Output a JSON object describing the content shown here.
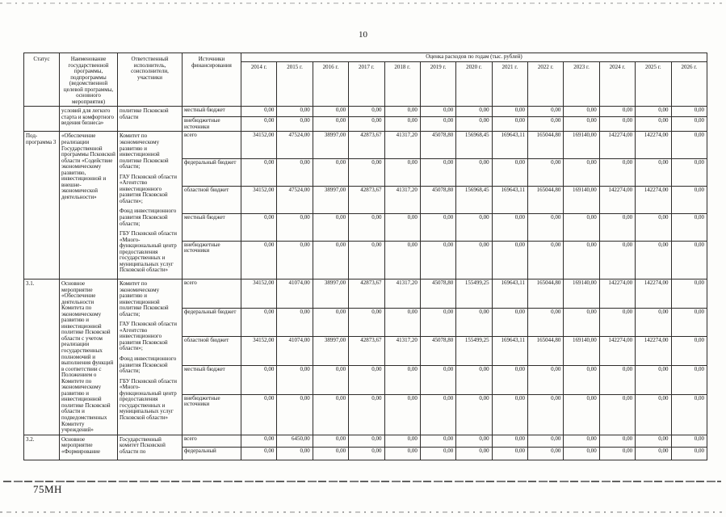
{
  "page": {
    "number": "10",
    "footer_code": "75МН"
  },
  "table": {
    "headers": {
      "status": "Статус",
      "program_name": "Наименование государственной программы, подпрограммы (ведомственной целевой программы, основного мероприятия)",
      "executor": "Ответственный исполнитель, соисполнители, участники",
      "funding_source": "Источники финансирования",
      "costs_banner": "Оценка расходов по годам (тыс. рублей)",
      "years": [
        "2014 г.",
        "2015 г.",
        "2016 г.",
        "2017 г.",
        "2018 г.",
        "2019 г.",
        "2020 г.",
        "2021 г.",
        "2022 г.",
        "2023 г.",
        "2024 г.",
        "2025 г.",
        "2026 г."
      ]
    },
    "blocks": [
      {
        "status": "",
        "name": "условий для легкого старта и комфортного ведения бизнеса»",
        "executor": [
          "политике Псковской области"
        ],
        "rows": [
          {
            "source": "местный бюджет",
            "values": [
              "0,00",
              "0,00",
              "0,00",
              "0,00",
              "0,00",
              "0,00",
              "0,00",
              "0,00",
              "0,00",
              "0,00",
              "0,00",
              "0,00",
              "0,00"
            ]
          },
          {
            "source": "внебюджетные источники",
            "values": [
              "0,00",
              "0,00",
              "0,00",
              "0,00",
              "0,00",
              "0,00",
              "0,00",
              "0,00",
              "0,00",
              "0,00",
              "0,00",
              "0,00",
              "0,00"
            ]
          }
        ]
      },
      {
        "status": "Под-программа 3",
        "name": "«Обеспечение реализации Государственной программы Псковской области «Содействие экономическому развитию, инвестиционной и внешне-экономической деятельности»",
        "executor": [
          "Комитет по экономическому развитию и инвестиционной политике Псковской области;",
          "ГАУ Псковской области «Агентство инвестиционного развития Псковской области»;",
          "Фонд инвестиционного развития Псковской области;",
          "ГБУ Псковской области «Много-функциональный центр предоставления государственных и муниципальных услуг Псковской области»"
        ],
        "rows": [
          {
            "source": "всего",
            "values": [
              "34152,00",
              "47524,00",
              "38997,00",
              "42873,67",
              "41317,20",
              "45078,80",
              "156968,45",
              "169643,11",
              "165044,80",
              "169140,00",
              "142274,00",
              "142274,00",
              "0,00"
            ]
          },
          {
            "source": "федеральный бюджет",
            "values": [
              "0,00",
              "0,00",
              "0,00",
              "0,00",
              "0,00",
              "0,00",
              "0,00",
              "0,00",
              "0,00",
              "0,00",
              "0,00",
              "0,00",
              "0,00"
            ]
          },
          {
            "source": "областной бюджет",
            "values": [
              "34152,00",
              "47524,00",
              "38997,00",
              "42873,67",
              "41317,20",
              "45078,80",
              "156968,45",
              "169643,11",
              "165044,80",
              "169140,00",
              "142274,00",
              "142274,00",
              "0,00"
            ]
          },
          {
            "source": "местный бюджет",
            "values": [
              "0,00",
              "0,00",
              "0,00",
              "0,00",
              "0,00",
              "0,00",
              "0,00",
              "0,00",
              "0,00",
              "0,00",
              "0,00",
              "0,00",
              "0,00"
            ]
          },
          {
            "source": "внебюджетные источники",
            "values": [
              "0,00",
              "0,00",
              "0,00",
              "0,00",
              "0,00",
              "0,00",
              "0,00",
              "0,00",
              "0,00",
              "0,00",
              "0,00",
              "0,00",
              "0,00"
            ]
          }
        ]
      },
      {
        "status": "3.1.",
        "name": "Основное мероприятие «Обеспечение деятельности Комитета по экономическому развитию и инвестиционной политике Псковской области с учетом реализации государственных полномочий и выполнения функций в соответствии с Положением о Комитете по экономическому развитию и инвестиционной политике Псковской области и подведомственных Комитету учреждений»",
        "executor": [
          "Комитет по экономическому развитию и инвестиционной политике Псковской области;",
          "ГАУ Псковской области «Агентство инвестиционного развития Псковской области»;",
          "Фонд инвестиционного развития Псковской области;",
          "ГБУ Псковской области «Много-функциональный центр предоставления государственных и муниципальных услуг Псковской области»"
        ],
        "rows": [
          {
            "source": "всего",
            "values": [
              "34152,00",
              "41074,00",
              "38997,00",
              "42873,67",
              "41317,20",
              "45078,80",
              "155499,25",
              "169643,11",
              "165044,80",
              "169140,00",
              "142274,00",
              "142274,00",
              "0,00"
            ]
          },
          {
            "source": "федеральный бюджет",
            "values": [
              "0,00",
              "0,00",
              "0,00",
              "0,00",
              "0,00",
              "0,00",
              "0,00",
              "0,00",
              "0,00",
              "0,00",
              "0,00",
              "0,00",
              "0,00"
            ]
          },
          {
            "source": "областной бюджет",
            "values": [
              "34152,00",
              "41074,00",
              "38997,00",
              "42873,67",
              "41317,20",
              "45078,80",
              "155499,25",
              "169643,11",
              "165044,80",
              "169140,00",
              "142274,00",
              "142274,00",
              "0,00"
            ]
          },
          {
            "source": "местный бюджет",
            "values": [
              "0,00",
              "0,00",
              "0,00",
              "0,00",
              "0,00",
              "0,00",
              "0,00",
              "0,00",
              "0,00",
              "0,00",
              "0,00",
              "0,00",
              "0,00"
            ]
          },
          {
            "source": "внебюджетные источники",
            "values": [
              "0,00",
              "0,00",
              "0,00",
              "0,00",
              "0,00",
              "0,00",
              "0,00",
              "0,00",
              "0,00",
              "0,00",
              "0,00",
              "0,00",
              "0,00"
            ]
          }
        ]
      },
      {
        "status": "3.2.",
        "name": "Основное мероприятие «Формирование",
        "executor": [
          "Государственный комитет Псковской области по"
        ],
        "rows": [
          {
            "source": "всего",
            "values": [
              "0,00",
              "6450,00",
              "0,00",
              "0,00",
              "0,00",
              "0,00",
              "0,00",
              "0,00",
              "0,00",
              "0,00",
              "0,00",
              "0,00",
              "0,00"
            ]
          },
          {
            "source": "федеральный",
            "values": [
              "0,00",
              "0,00",
              "0,00",
              "0,00",
              "0,00",
              "0,00",
              "0,00",
              "0,00",
              "0,00",
              "0,00",
              "0,00",
              "0,00",
              "0,00"
            ]
          }
        ]
      }
    ]
  }
}
